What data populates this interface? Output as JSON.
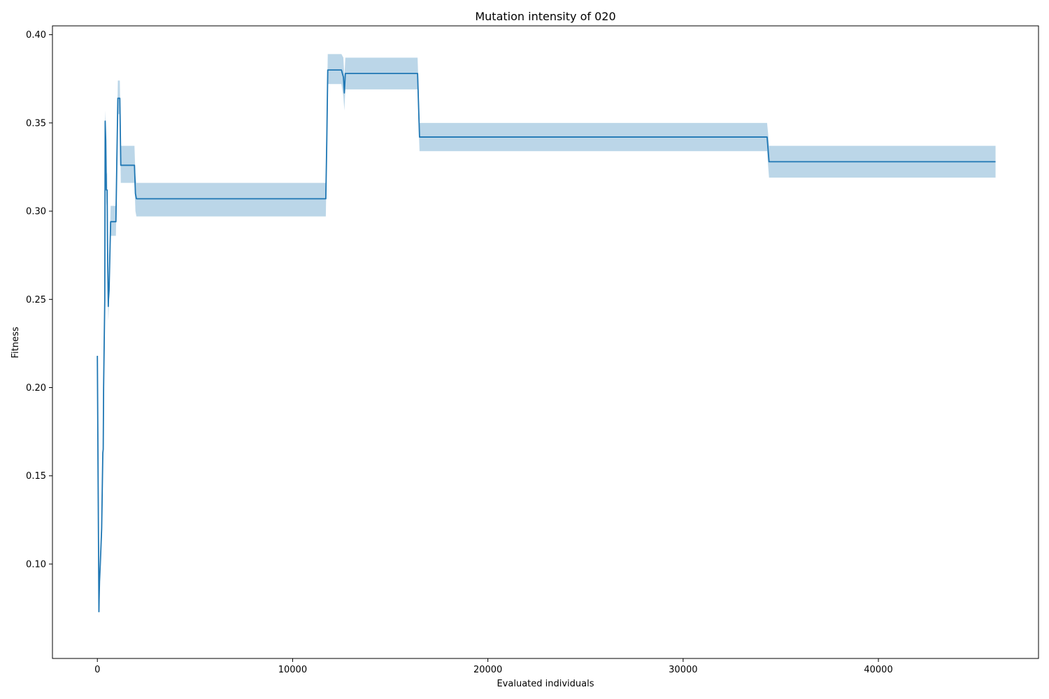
{
  "chart_data": {
    "type": "line",
    "title": "Mutation intensity of 020",
    "xlabel": "Evaluated individuals",
    "ylabel": "Fitness",
    "xlim": [
      -2300,
      48200
    ],
    "ylim": [
      0.0465,
      0.405
    ],
    "xticks": [
      0,
      10000,
      20000,
      30000,
      40000
    ],
    "yticks": [
      0.1,
      0.15,
      0.2,
      0.25,
      0.3,
      0.35,
      0.4
    ],
    "xtick_labels": [
      "0",
      "10000",
      "20000",
      "30000",
      "40000"
    ],
    "ytick_labels": [
      "0.10",
      "0.15",
      "0.20",
      "0.25",
      "0.30",
      "0.35",
      "0.40"
    ],
    "grid": false,
    "legend": "none",
    "series": [
      {
        "color": "#1f77b4",
        "band_color": "#1f77b4",
        "band_opacity": 0.3,
        "x": [
          0,
          80,
          90,
          110,
          150,
          220,
          280,
          300,
          320,
          380,
          400,
          430,
          460,
          500,
          520,
          560,
          570,
          600,
          630,
          680,
          700,
          720,
          760,
          800,
          950,
          1000,
          1050,
          1100,
          1150,
          1200,
          1250,
          1300,
          1900,
          1950,
          2000,
          11700,
          11750,
          11800,
          12500,
          12600,
          12650,
          12700,
          13000,
          16400,
          16450,
          16500,
          34300,
          34350,
          34400,
          46000
        ],
        "y": [
          0.218,
          0.073,
          0.08,
          0.09,
          0.1,
          0.12,
          0.163,
          0.165,
          0.2,
          0.25,
          0.351,
          0.34,
          0.312,
          0.312,
          0.28,
          0.246,
          0.25,
          0.255,
          0.27,
          0.294,
          0.294,
          0.294,
          0.294,
          0.294,
          0.294,
          0.33,
          0.364,
          0.364,
          0.364,
          0.326,
          0.326,
          0.326,
          0.326,
          0.31,
          0.307,
          0.307,
          0.34,
          0.38,
          0.38,
          0.376,
          0.367,
          0.378,
          0.378,
          0.378,
          0.36,
          0.342,
          0.342,
          0.335,
          0.328,
          0.328
        ],
        "lower": [
          0.218,
          0.073,
          0.08,
          0.09,
          0.1,
          0.12,
          0.163,
          0.165,
          0.2,
          0.24,
          0.345,
          0.33,
          0.305,
          0.3,
          0.26,
          0.238,
          0.24,
          0.25,
          0.26,
          0.286,
          0.286,
          0.286,
          0.286,
          0.286,
          0.286,
          0.32,
          0.355,
          0.355,
          0.355,
          0.316,
          0.316,
          0.316,
          0.316,
          0.3,
          0.297,
          0.297,
          0.33,
          0.372,
          0.372,
          0.365,
          0.357,
          0.369,
          0.369,
          0.369,
          0.35,
          0.334,
          0.334,
          0.326,
          0.319,
          0.319
        ],
        "upper": [
          0.218,
          0.073,
          0.08,
          0.09,
          0.1,
          0.12,
          0.163,
          0.165,
          0.2,
          0.26,
          0.357,
          0.35,
          0.32,
          0.322,
          0.3,
          0.255,
          0.258,
          0.262,
          0.28,
          0.303,
          0.303,
          0.303,
          0.303,
          0.303,
          0.303,
          0.34,
          0.374,
          0.374,
          0.374,
          0.337,
          0.337,
          0.337,
          0.337,
          0.32,
          0.316,
          0.316,
          0.35,
          0.389,
          0.389,
          0.387,
          0.376,
          0.387,
          0.387,
          0.387,
          0.37,
          0.35,
          0.35,
          0.344,
          0.337,
          0.337
        ]
      }
    ]
  }
}
